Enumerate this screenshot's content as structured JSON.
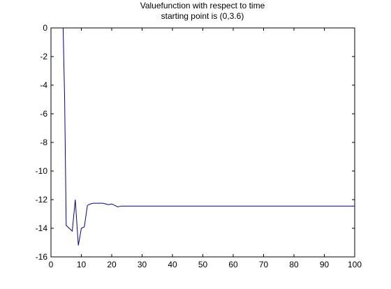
{
  "chart_data": {
    "type": "line",
    "title": "Valuefunction with respect to time",
    "subtitle": "starting point is (0,3.6)",
    "xlabel": "",
    "ylabel": "",
    "xlim": [
      0,
      100
    ],
    "ylim": [
      -16,
      0
    ],
    "xticks": [
      0,
      10,
      20,
      30,
      40,
      50,
      60,
      70,
      80,
      90,
      100
    ],
    "yticks": [
      0,
      -2,
      -4,
      -6,
      -8,
      -10,
      -12,
      -14,
      -16
    ],
    "grid": false,
    "line_color": "#00008b",
    "series": [
      {
        "x": [
          4,
          4.5,
          5,
          6,
          7,
          8,
          9,
          10,
          11,
          12,
          13,
          14,
          15,
          16,
          17,
          18,
          19,
          20,
          21,
          22,
          23,
          24,
          25,
          30,
          40,
          50,
          60,
          70,
          80,
          90,
          100
        ],
        "values": [
          0,
          -5,
          -13.8,
          -14,
          -14.2,
          -12,
          -15.2,
          -14,
          -13.9,
          -12.4,
          -12.3,
          -12.25,
          -12.25,
          -12.25,
          -12.25,
          -12.3,
          -12.35,
          -12.3,
          -12.4,
          -12.5,
          -12.45,
          -12.45,
          -12.45,
          -12.45,
          -12.45,
          -12.45,
          -12.45,
          -12.45,
          -12.45,
          -12.45,
          -12.45
        ]
      }
    ]
  }
}
